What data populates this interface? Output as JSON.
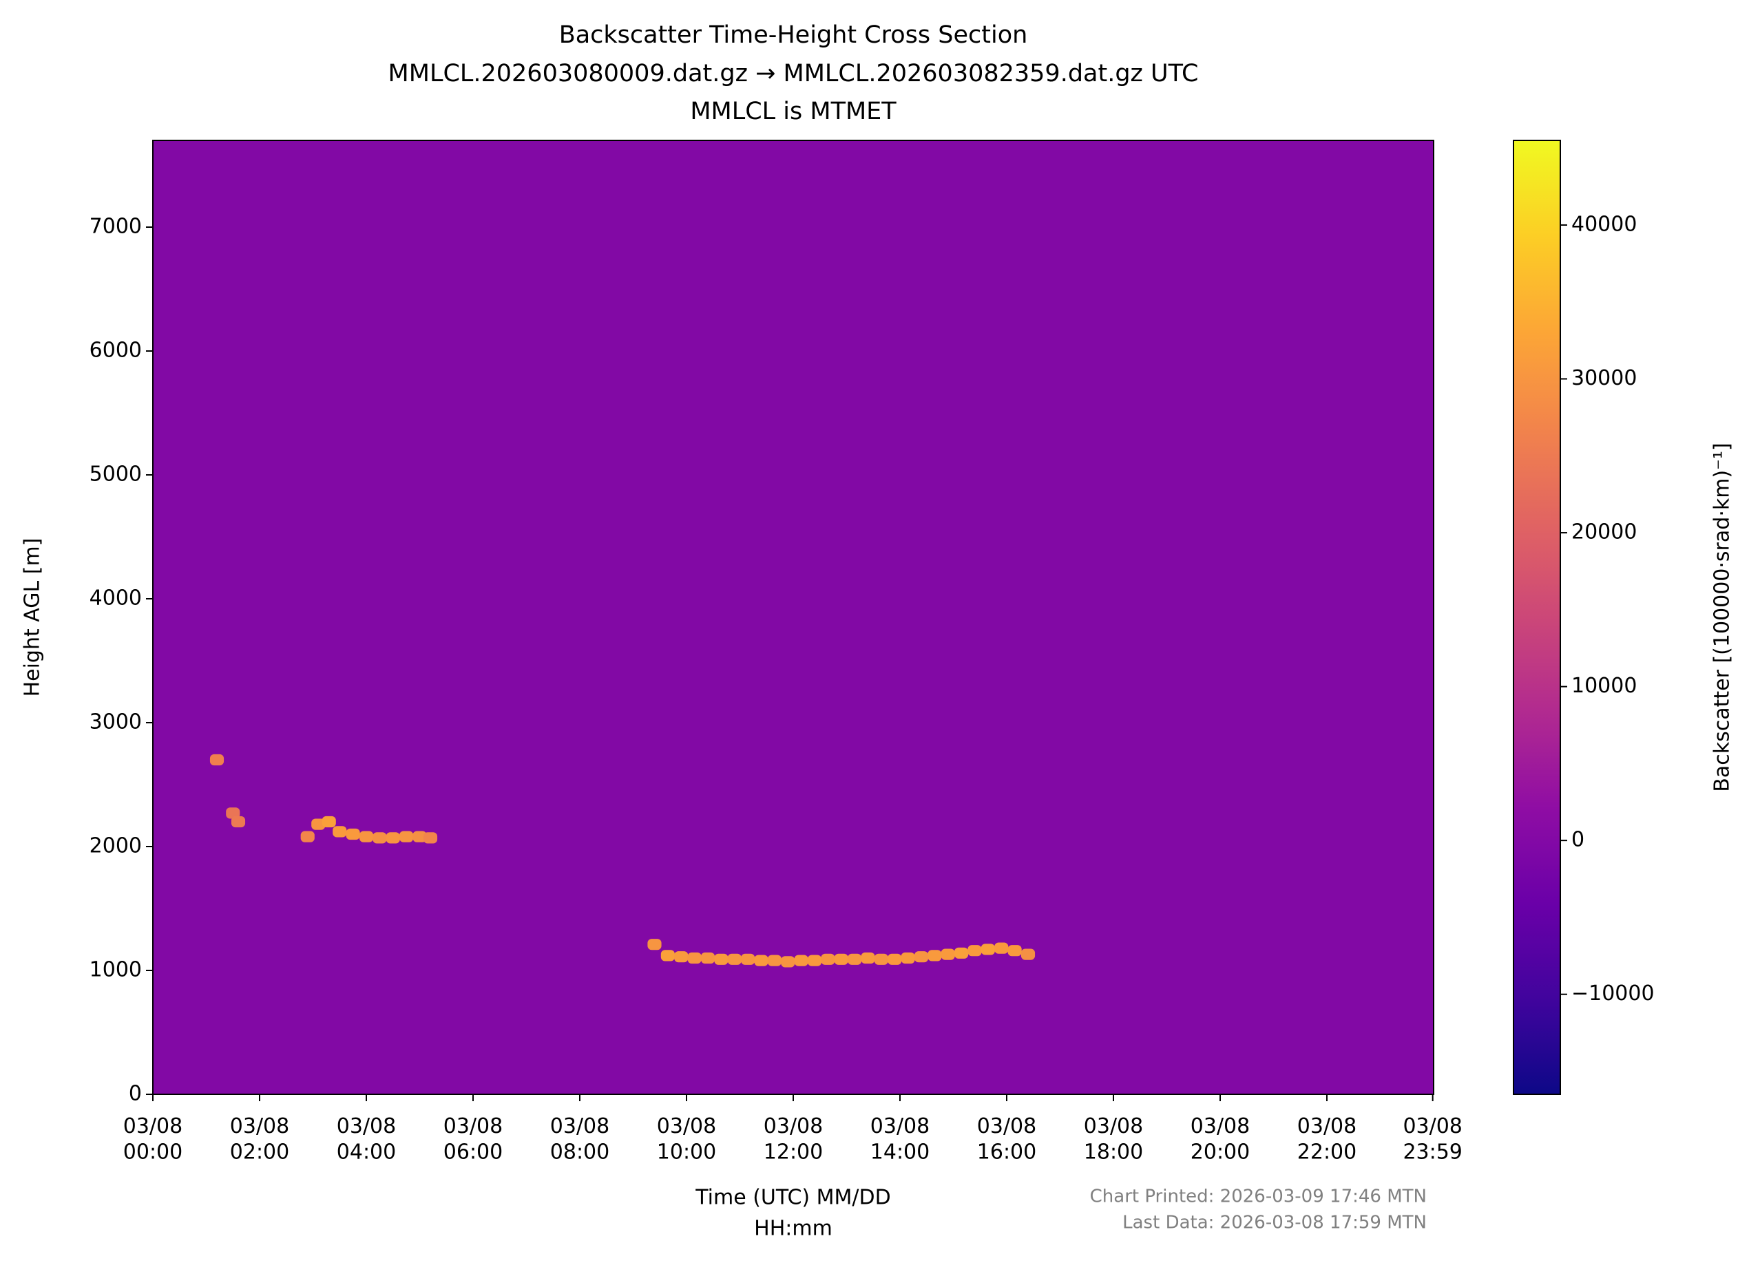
{
  "chart_data": {
    "type": "heatmap",
    "title": [
      "Backscatter Time-Height Cross Section",
      "MMLCL.202603080009.dat.gz → MMLCL.202603082359.dat.gz UTC",
      "MMLCL is MTMET"
    ],
    "x_label": [
      "Time (UTC) MM/DD",
      "HH:mm"
    ],
    "y_label": "Height AGL [m]",
    "colorbar_label": "Backscatter [(100000·srad·km)⁻¹]",
    "footnotes": [
      "Chart Printed: 2026-03-09 17:46 MTN",
      "Last Data: 2026-03-08 17:59 MTN"
    ],
    "colormap": "plasma",
    "xlim": [
      0,
      24
    ],
    "xticks": [
      {
        "value": 0,
        "label": "03/08\n00:00"
      },
      {
        "value": 2,
        "label": "03/08\n02:00"
      },
      {
        "value": 4,
        "label": "03/08\n04:00"
      },
      {
        "value": 6,
        "label": "03/08\n06:00"
      },
      {
        "value": 8,
        "label": "03/08\n08:00"
      },
      {
        "value": 10,
        "label": "03/08\n10:00"
      },
      {
        "value": 12,
        "label": "03/08\n12:00"
      },
      {
        "value": 14,
        "label": "03/08\n14:00"
      },
      {
        "value": 16,
        "label": "03/08\n16:00"
      },
      {
        "value": 18,
        "label": "03/08\n18:00"
      },
      {
        "value": 20,
        "label": "03/08\n20:00"
      },
      {
        "value": 22,
        "label": "03/08\n22:00"
      },
      {
        "value": 23.983,
        "label": "03/08\n23:59"
      }
    ],
    "ylim": [
      0,
      7700
    ],
    "yticks": [
      0,
      1000,
      2000,
      3000,
      4000,
      5000,
      6000,
      7000
    ],
    "clim": [
      -16500,
      45500
    ],
    "cticks": [
      {
        "value": -10000,
        "label": "−10000"
      },
      0,
      10000,
      20000,
      30000,
      40000
    ],
    "x": [
      1.2,
      1.5,
      1.6,
      2.9,
      3.1,
      3.3,
      3.5,
      3.75,
      4.0,
      4.25,
      4.5,
      4.75,
      5.0,
      5.2,
      9.4,
      9.65,
      9.9,
      10.15,
      10.4,
      10.65,
      10.9,
      11.15,
      11.4,
      11.65,
      11.9,
      12.15,
      12.4,
      12.65,
      12.9,
      13.15,
      13.4,
      13.65,
      13.9,
      14.15,
      14.4,
      14.65,
      14.9,
      15.15,
      15.4,
      15.65,
      15.9,
      16.15,
      16.4
    ],
    "y": [
      2700,
      2270,
      2200,
      2080,
      2180,
      2200,
      2120,
      2100,
      2080,
      2070,
      2070,
      2080,
      2080,
      2070,
      1210,
      1120,
      1110,
      1100,
      1100,
      1090,
      1090,
      1090,
      1080,
      1080,
      1070,
      1080,
      1080,
      1090,
      1090,
      1090,
      1100,
      1090,
      1090,
      1100,
      1110,
      1120,
      1130,
      1140,
      1160,
      1170,
      1180,
      1160,
      1130
    ],
    "values": [
      26000,
      24000,
      25000,
      27000,
      30000,
      32000,
      31000,
      31000,
      30000,
      29000,
      30000,
      30000,
      29000,
      27000,
      30000,
      32000,
      31000,
      30000,
      30000,
      31000,
      30000,
      30000,
      31000,
      30000,
      30000,
      31000,
      31000,
      30000,
      31000,
      30000,
      31000,
      30000,
      31000,
      31000,
      30000,
      31000,
      31000,
      32000,
      31000,
      32000,
      31000,
      31000,
      29000
    ]
  }
}
